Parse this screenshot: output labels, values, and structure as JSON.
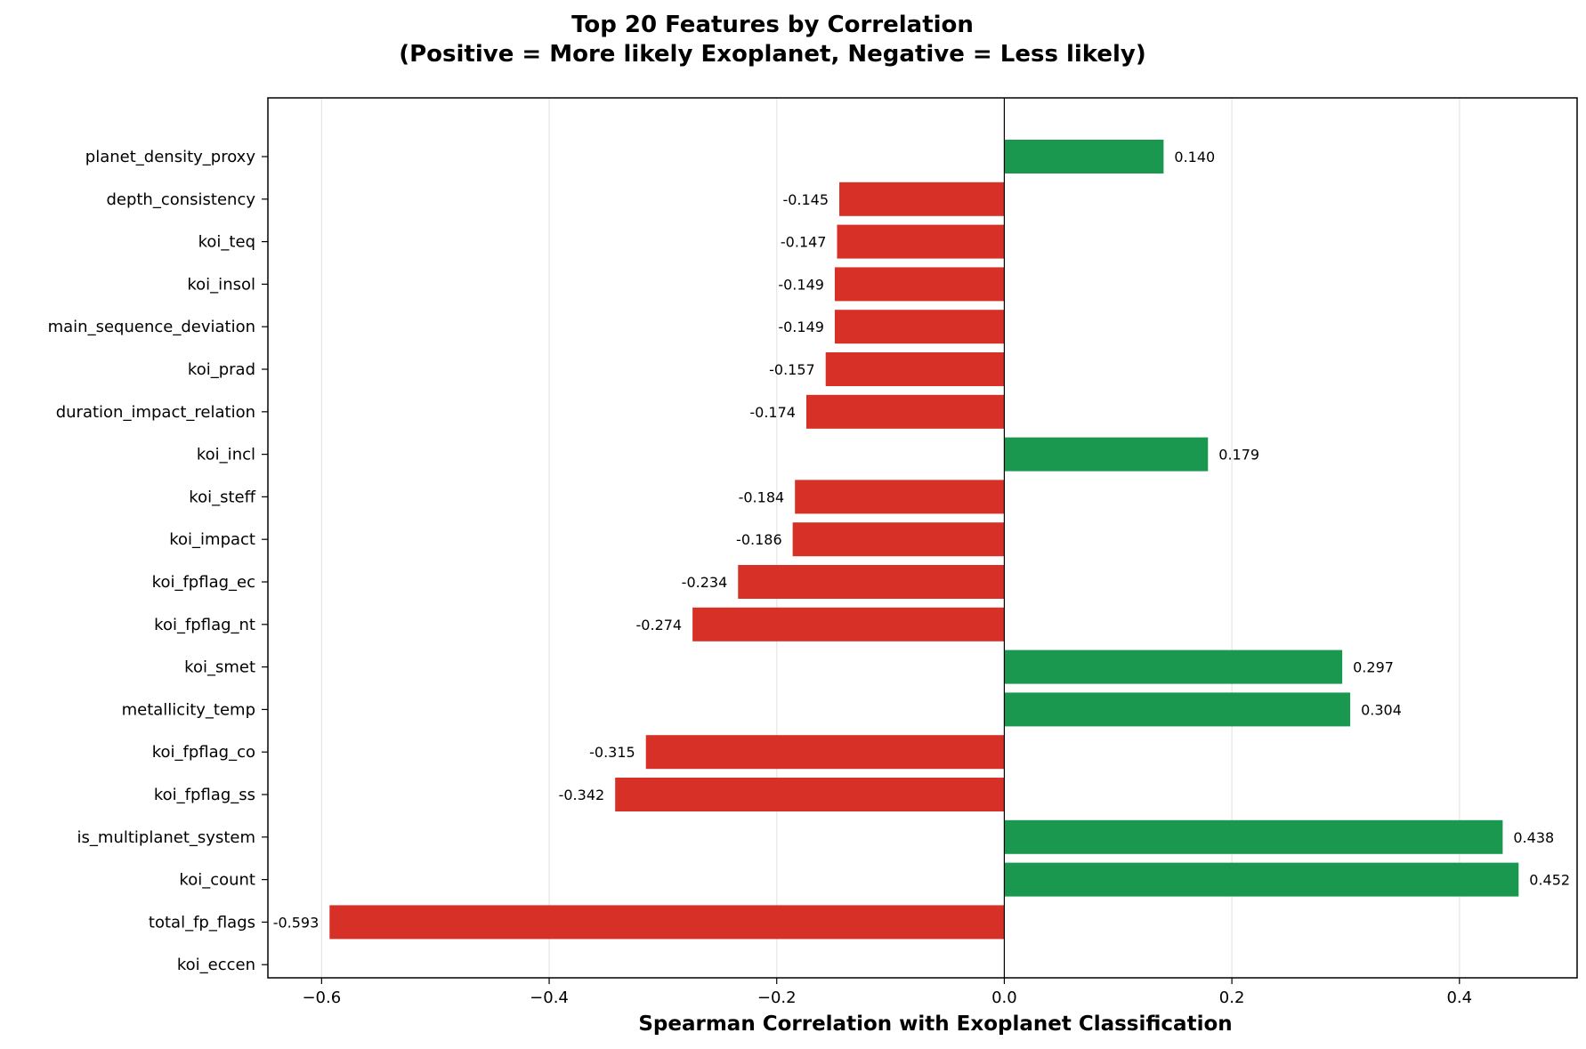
{
  "chart_data": {
    "type": "bar",
    "orientation": "horizontal",
    "title_line1": "Top 20 Features by Correlation",
    "title_line2": "(Positive = More likely Exoplanet, Negative = Less likely)",
    "xlabel": "Spearman Correlation with Exoplanet Classification",
    "ylabel": "",
    "xlim": [
      -0.6472,
      0.5034
    ],
    "x_ticks": [
      -0.6,
      -0.4,
      -0.2,
      0.0,
      0.2,
      0.4
    ],
    "x_tick_labels": [
      "−0.6",
      "−0.4",
      "−0.2",
      "0.0",
      "0.2",
      "0.4"
    ],
    "grid": "vertical",
    "positive_color": "#1a9850",
    "negative_color": "#d73027",
    "categories": [
      "planet_density_proxy",
      "depth_consistency",
      "koi_teq",
      "koi_insol",
      "main_sequence_deviation",
      "koi_prad",
      "duration_impact_relation",
      "koi_incl",
      "koi_steff",
      "koi_impact",
      "koi_fpflag_ec",
      "koi_fpflag_nt",
      "koi_smet",
      "metallicity_temp",
      "koi_fpflag_co",
      "koi_fpflag_ss",
      "is_multiplanet_system",
      "koi_count",
      "total_fp_flags",
      "koi_eccen"
    ],
    "values": [
      0.14,
      -0.145,
      -0.147,
      -0.149,
      -0.149,
      -0.157,
      -0.174,
      0.179,
      -0.184,
      -0.186,
      -0.234,
      -0.274,
      0.297,
      0.304,
      -0.315,
      -0.342,
      0.438,
      0.452,
      -0.593,
      null
    ],
    "value_labels": [
      "0.140",
      "-0.145",
      "-0.147",
      "-0.149",
      "-0.149",
      "-0.157",
      "-0.174",
      "0.179",
      "-0.184",
      "-0.186",
      "-0.234",
      "-0.274",
      "0.297",
      "0.304",
      "-0.315",
      "-0.342",
      "0.438",
      "0.452",
      "-0.593",
      ""
    ]
  }
}
